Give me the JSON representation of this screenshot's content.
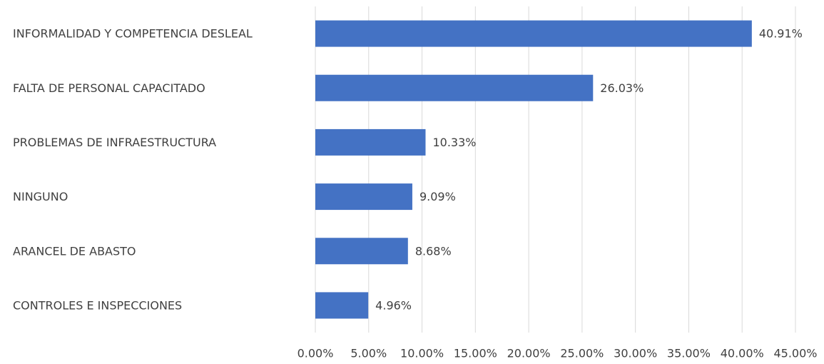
{
  "chart_data": {
    "type": "hbar",
    "categories": [
      "INFORMALIDAD Y COMPETENCIA DESLEAL",
      "FALTA DE PERSONAL CAPACITADO",
      "PROBLEMAS DE INFRAESTRUCTURA",
      "NINGUNO",
      "ARANCEL DE ABASTO",
      "CONTROLES E INSPECCIONES"
    ],
    "values": [
      40.91,
      26.03,
      10.33,
      9.09,
      8.68,
      4.96
    ],
    "value_labels": [
      "40.91%",
      "26.03%",
      "10.33%",
      "9.09%",
      "8.68%",
      "4.96%"
    ],
    "color": "#4472c4",
    "xlim": [
      0,
      45
    ],
    "xticks": [
      {
        "value": 0,
        "label": "0.00%"
      },
      {
        "value": 5,
        "label": "5.00%"
      },
      {
        "value": 10,
        "label": "10.00%"
      },
      {
        "value": 15,
        "label": "15.00%"
      },
      {
        "value": 20,
        "label": "20.00%"
      },
      {
        "value": 25,
        "label": "25.00%"
      },
      {
        "value": 30,
        "label": "30.00%"
      },
      {
        "value": 35,
        "label": "35.00%"
      },
      {
        "value": 40,
        "label": "40.00%"
      },
      {
        "value": 45,
        "label": "45.00%"
      }
    ],
    "grid": true
  }
}
